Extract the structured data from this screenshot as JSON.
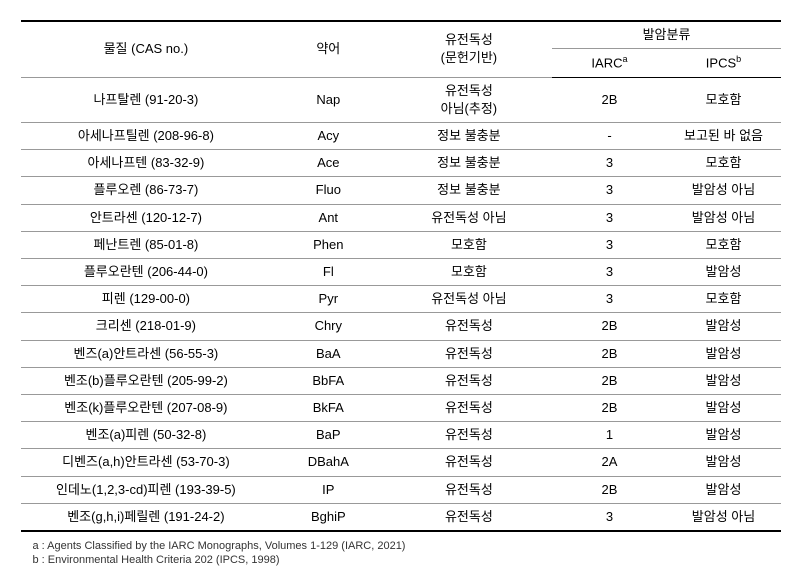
{
  "headers": {
    "substance": "물질 (CAS no.)",
    "abbr": "약어",
    "genotox": "유전독성",
    "genotox_sub": "(문헌기반)",
    "carcinogen": "발암분류",
    "iarc": "IARC",
    "iarc_sup": "a",
    "ipcs": "IPCS",
    "ipcs_sup": "b"
  },
  "rows": [
    {
      "substance": "나프탈렌 (91-20-3)",
      "abbr": "Nap",
      "geno": "유전독성\n아님(추정)",
      "iarc": "2B",
      "ipcs": "모호함"
    },
    {
      "substance": "아세나프틸렌 (208-96-8)",
      "abbr": "Acy",
      "geno": "정보 불충분",
      "iarc": "-",
      "ipcs": "보고된 바 없음"
    },
    {
      "substance": "아세나프텐 (83-32-9)",
      "abbr": "Ace",
      "geno": "정보 불충분",
      "iarc": "3",
      "ipcs": "모호함"
    },
    {
      "substance": "플루오렌 (86-73-7)",
      "abbr": "Fluo",
      "geno": "정보 불충분",
      "iarc": "3",
      "ipcs": "발암성 아님"
    },
    {
      "substance": "안트라센 (120-12-7)",
      "abbr": "Ant",
      "geno": "유전독성 아님",
      "iarc": "3",
      "ipcs": "발암성 아님"
    },
    {
      "substance": "페난트렌 (85-01-8)",
      "abbr": "Phen",
      "geno": "모호함",
      "iarc": "3",
      "ipcs": "모호함"
    },
    {
      "substance": "플루오란텐 (206-44-0)",
      "abbr": "Fl",
      "geno": "모호함",
      "iarc": "3",
      "ipcs": "발암성"
    },
    {
      "substance": "피렌 (129-00-0)",
      "abbr": "Pyr",
      "geno": "유전독성 아님",
      "iarc": "3",
      "ipcs": "모호함"
    },
    {
      "substance": "크리센 (218-01-9)",
      "abbr": "Chry",
      "geno": "유전독성",
      "iarc": "2B",
      "ipcs": "발암성"
    },
    {
      "substance": "벤즈(a)안트라센 (56-55-3)",
      "abbr": "BaA",
      "geno": "유전독성",
      "iarc": "2B",
      "ipcs": "발암성"
    },
    {
      "substance": "벤조(b)플루오란텐 (205-99-2)",
      "abbr": "BbFA",
      "geno": "유전독성",
      "iarc": "2B",
      "ipcs": "발암성"
    },
    {
      "substance": "벤조(k)플루오란텐 (207-08-9)",
      "abbr": "BkFA",
      "geno": "유전독성",
      "iarc": "2B",
      "ipcs": "발암성"
    },
    {
      "substance": "벤조(a)피렌 (50-32-8)",
      "abbr": "BaP",
      "geno": "유전독성",
      "iarc": "1",
      "ipcs": "발암성"
    },
    {
      "substance": "디벤즈(a,h)안트라센 (53-70-3)",
      "abbr": "DBahA",
      "geno": "유전독성",
      "iarc": "2A",
      "ipcs": "발암성"
    },
    {
      "substance": "인데노(1,2,3-cd)피렌 (193-39-5)",
      "abbr": "IP",
      "geno": "유전독성",
      "iarc": "2B",
      "ipcs": "발암성"
    },
    {
      "substance": "벤조(g,h,i)페릴렌 (191-24-2)",
      "abbr": "BghiP",
      "geno": "유전독성",
      "iarc": "3",
      "ipcs": "발암성 아님"
    }
  ],
  "footnotes": {
    "a": "a : Agents Classified by the IARC Monographs, Volumes 1-129 (IARC, 2021)",
    "b": "b : Environmental Health Criteria 202 (IPCS, 1998)"
  }
}
